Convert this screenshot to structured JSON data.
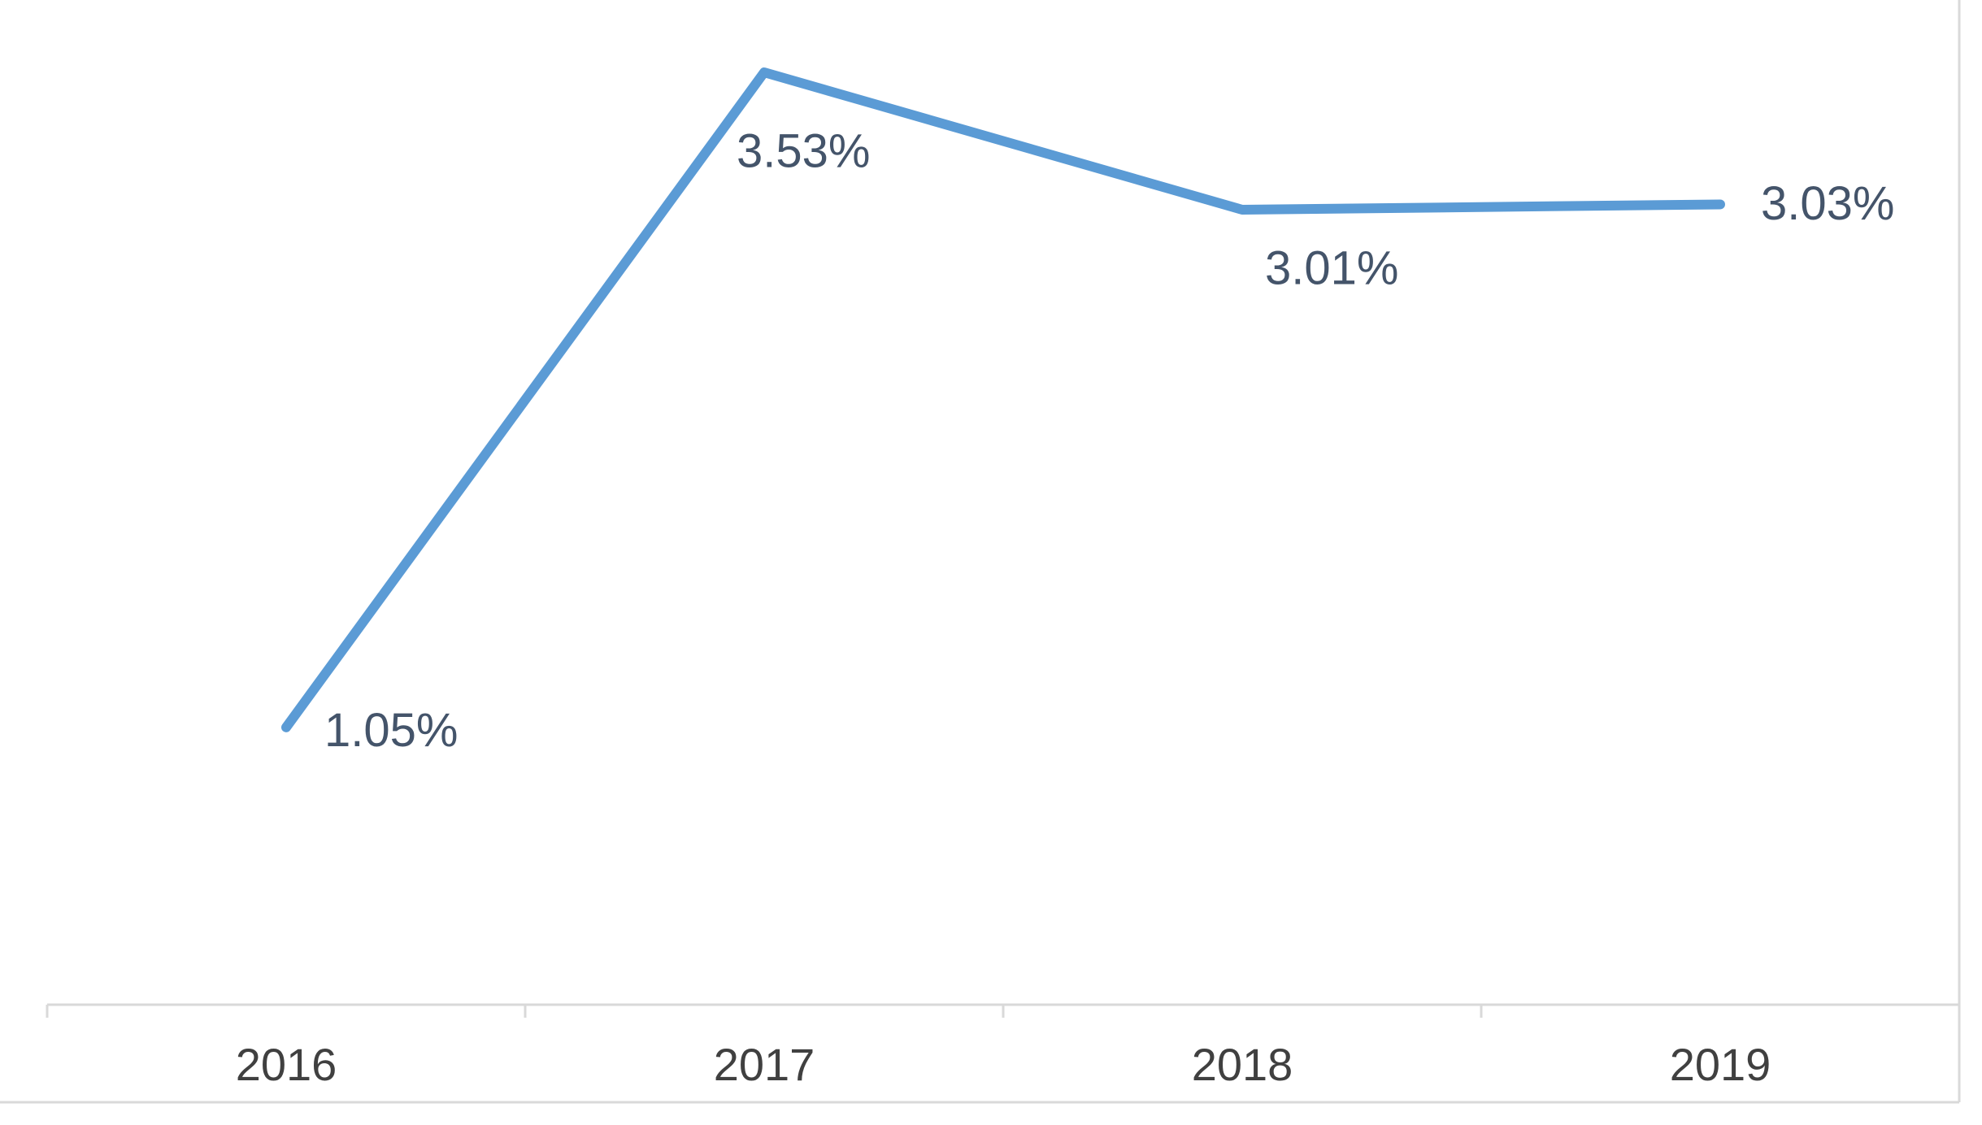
{
  "chart_data": {
    "type": "line",
    "categories": [
      "2016",
      "2017",
      "2018",
      "2019"
    ],
    "series": [
      {
        "color": "#5b9bd5",
        "values": [
          1.05,
          3.53,
          3.01,
          3.03
        ],
        "value_labels": [
          "1.05%",
          "3.53%",
          "3.01%",
          "3.03%"
        ]
      }
    ]
  }
}
